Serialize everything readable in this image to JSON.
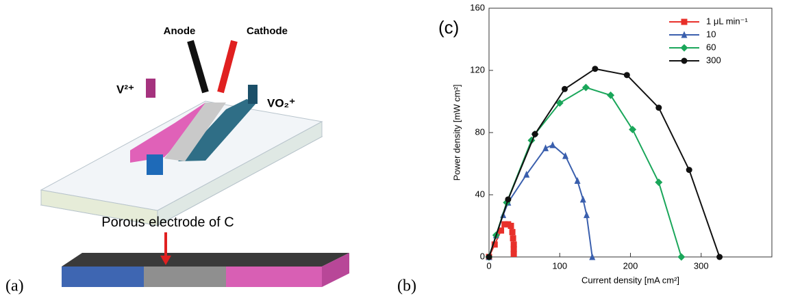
{
  "diagram": {
    "anode": "Anode",
    "cathode": "Cathode",
    "v2": "V²⁺",
    "vo2": "VO₂⁺",
    "porous": "Porous electrode of C",
    "label_a": "(a)",
    "label_b": "(b)"
  },
  "chart_data": {
    "type": "line",
    "title": "(c)",
    "x_label": "Current density [mA cm²]",
    "y_label": "Power density [mW cm²]",
    "xlim": [
      0,
      400
    ],
    "xticks": [
      0,
      100,
      200,
      300
    ],
    "ylim": [
      0,
      160
    ],
    "yticks": [
      0,
      40,
      80,
      120,
      160
    ],
    "legend": "upper right",
    "series": [
      {
        "name": "1 μL min⁻¹",
        "color": "#e8302a",
        "marker": "square",
        "x": [
          0,
          8,
          17,
          22,
          27,
          31,
          33,
          34,
          35,
          35,
          35
        ],
        "values": [
          0,
          8,
          17,
          21,
          21,
          20,
          16,
          12,
          8,
          5,
          2
        ]
      },
      {
        "name": "10",
        "color": "#3a5fad",
        "marker": "triangle",
        "x": [
          0,
          10,
          20,
          27,
          53,
          80,
          90,
          108,
          125,
          133,
          138,
          146
        ],
        "values": [
          0,
          14,
          27,
          35,
          53,
          70,
          72,
          65,
          49,
          37,
          27,
          0
        ]
      },
      {
        "name": "60",
        "color": "#1aa65a",
        "marker": "diamond",
        "x": [
          0,
          10,
          25,
          60,
          65,
          100,
          137,
          172,
          203,
          240,
          272
        ],
        "values": [
          0,
          14,
          35,
          75,
          79,
          99,
          109,
          104,
          82,
          48,
          0
        ]
      },
      {
        "name": "300",
        "color": "#111111",
        "marker": "circle",
        "x": [
          0,
          27,
          65,
          107,
          150,
          195,
          240,
          283,
          326
        ],
        "values": [
          0,
          37,
          79,
          108,
          121,
          117,
          96,
          56,
          0
        ]
      }
    ]
  }
}
